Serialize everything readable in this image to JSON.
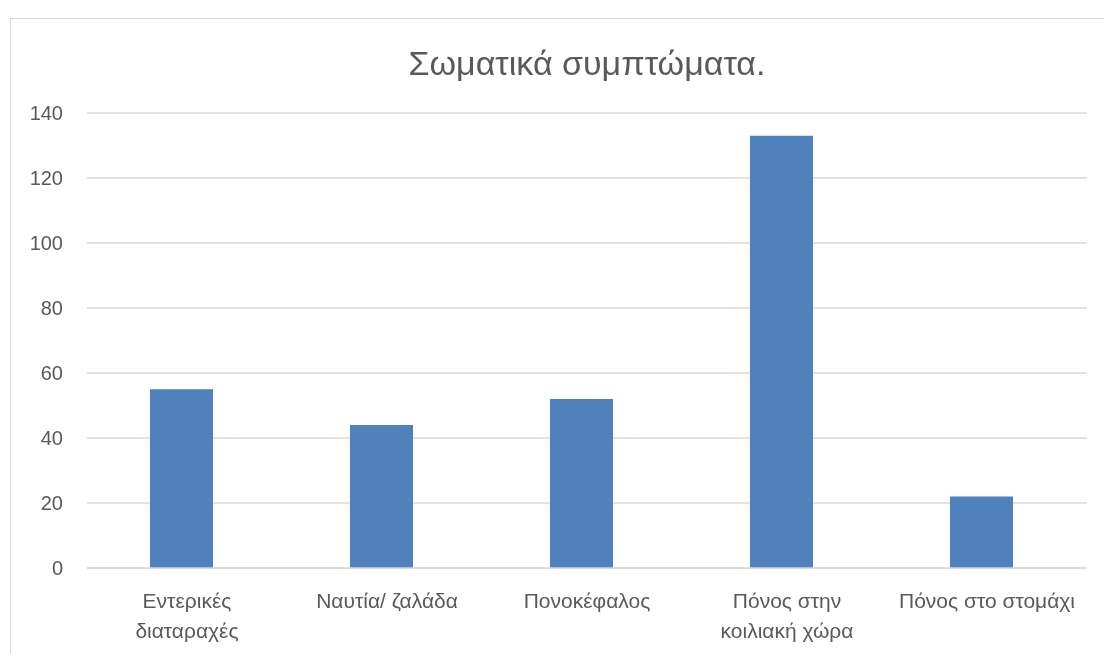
{
  "chart_data": {
    "type": "bar",
    "title": "Σωματικά συμπτώματα.",
    "categories": [
      "Εντερικές διαταραχές",
      "Ναυτία/ ζαλάδα",
      "Πονοκέφαλος",
      "Πόνος στην κοιλιακή χώρα",
      "Πόνος στο στομάχι"
    ],
    "values": [
      55,
      44,
      52,
      133,
      22
    ],
    "color": "#4f81bd",
    "ylim": [
      0,
      140
    ],
    "yticks": [
      0,
      20,
      40,
      60,
      80,
      100,
      120,
      140
    ],
    "grid": "y"
  }
}
